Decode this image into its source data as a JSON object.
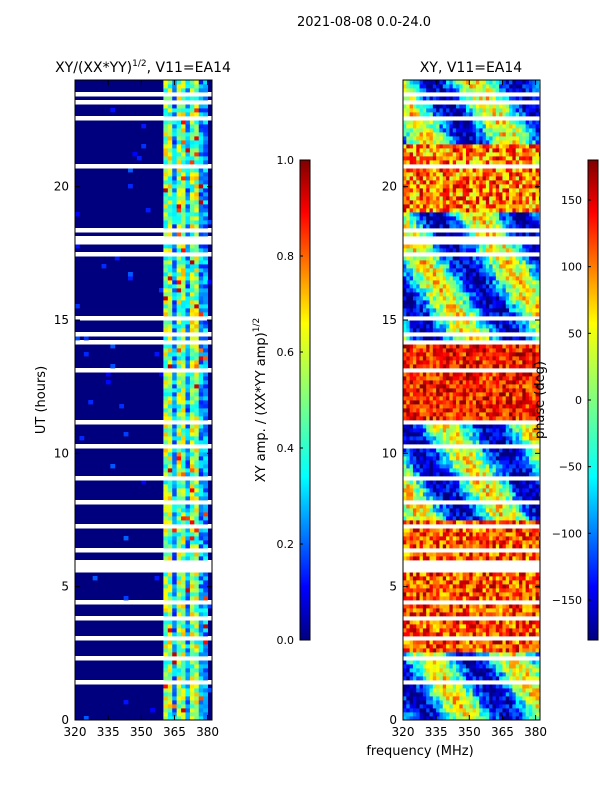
{
  "figure": {
    "suptitle": "2021-08-08 0.0-24.0",
    "xlabel": "frequency (MHz)"
  },
  "chart_data": [
    {
      "type": "heatmap",
      "title_prefix": "XY/(XX*YY)",
      "title_exponent": "1/2",
      "title_suffix": ", V11=EA14",
      "xlabel": "",
      "ylabel": "UT (hours)",
      "xlim": [
        320,
        382
      ],
      "ylim": [
        0,
        24
      ],
      "xticks": [
        320,
        335,
        350,
        365,
        380
      ],
      "yticks": [
        0,
        5,
        10,
        15,
        20
      ],
      "colorbar": {
        "label_prefix": "XY amp. / (XX*YY amp)",
        "label_exponent": "1/2",
        "range": [
          0.0,
          1.0
        ],
        "ticks": [
          "0.0",
          "0.2",
          "0.4",
          "0.6",
          "0.8",
          "1.0"
        ],
        "colormap": "jet"
      },
      "description": "Low amplitude (~0.0-0.1) for 320-359 MHz; elevated amplitude (~0.3-0.8) in channels 360-378 MHz; frequent white gaps (flagged data) across time"
    },
    {
      "type": "heatmap",
      "title": "XY, V11=EA14",
      "xlabel": "",
      "ylabel": "",
      "xlim": [
        320,
        382
      ],
      "ylim": [
        0,
        24
      ],
      "xticks": [
        320,
        335,
        350,
        365,
        380
      ],
      "yticks": [
        0,
        5,
        10,
        15,
        20
      ],
      "colorbar": {
        "label": "phase (deg)",
        "range": [
          -180,
          180
        ],
        "ticks": [
          "150",
          "100",
          "50",
          "0",
          "−50",
          "−100",
          "−150"
        ],
        "colormap": "jet"
      },
      "description": "XY phase varies widely across -180..180 deg; banded structure in time with white flagged gaps"
    }
  ],
  "colors": {
    "jet": [
      "#00007f",
      "#0000ff",
      "#007fff",
      "#00ffff",
      "#7fff7f",
      "#ffff00",
      "#ff7f00",
      "#ff0000",
      "#7f0000"
    ]
  }
}
